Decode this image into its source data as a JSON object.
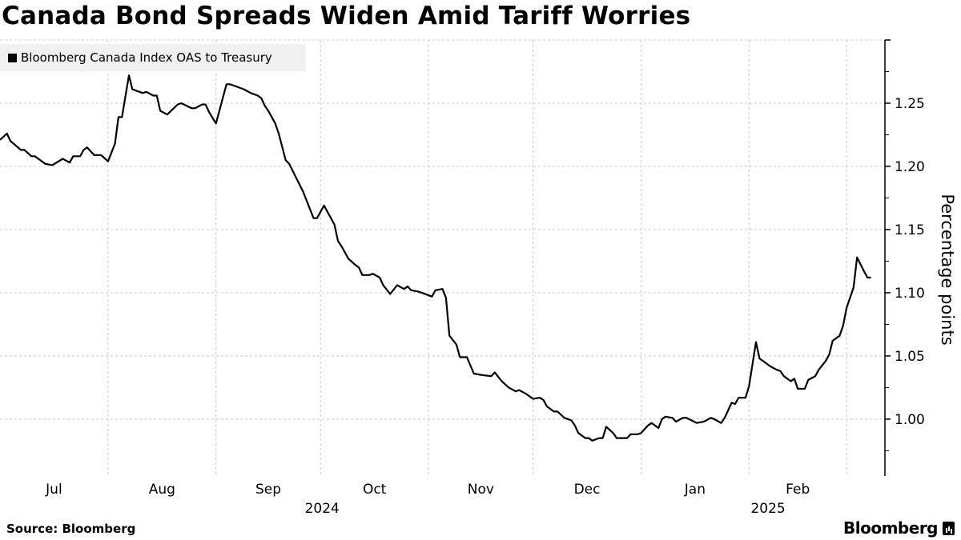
{
  "chart_data": {
    "type": "line",
    "title": "Canada Bond Spreads Widen Amid Tariff Worries",
    "legend": [
      "Bloomberg Canada Index OAS to Treasury"
    ],
    "legend_placement": "top-left",
    "ylabel": "Percentage points",
    "xlabel": "",
    "x_unit": "days since 2024-07-01",
    "xlim": [
      0,
      254
    ],
    "ylim": [
      0.955,
      1.3
    ],
    "yticks": [
      "1.00",
      "1.05",
      "1.10",
      "1.15",
      "1.20",
      "1.25"
    ],
    "grid": true,
    "month_ticks": [
      {
        "label": "Jul",
        "start": 0,
        "end": 31
      },
      {
        "label": "Aug",
        "start": 31,
        "end": 62
      },
      {
        "label": "Sep",
        "start": 62,
        "end": 92
      },
      {
        "label": "Oct",
        "start": 92,
        "end": 123
      },
      {
        "label": "Nov",
        "start": 123,
        "end": 153
      },
      {
        "label": "Dec",
        "start": 153,
        "end": 184
      },
      {
        "label": "Jan",
        "start": 184,
        "end": 215
      },
      {
        "label": "Feb",
        "start": 215,
        "end": 243
      }
    ],
    "month_boundaries": [
      31,
      62,
      92,
      123,
      153,
      184,
      215,
      243
    ],
    "year_labels": [
      {
        "label": "2024",
        "at": 92
      },
      {
        "label": "2025",
        "at": 220
      }
    ],
    "series": [
      {
        "name": "Bloomberg Canada Index OAS to Treasury",
        "color": "#000000",
        "x": [
          0,
          2,
          3,
          6,
          7,
          9,
          10,
          11,
          13,
          15,
          18,
          20,
          21,
          23,
          24,
          25,
          27,
          29,
          31,
          33,
          34,
          35,
          37,
          38,
          41,
          42,
          44,
          45,
          46,
          48,
          51,
          52,
          55,
          56,
          58,
          59,
          60,
          62,
          65,
          66,
          68,
          70,
          72,
          74,
          75,
          76,
          77,
          79,
          80,
          82,
          83,
          85,
          87,
          89,
          90,
          91,
          93,
          94,
          96,
          97,
          98,
          100,
          102,
          103,
          104,
          106,
          107,
          109,
          110,
          112,
          114,
          116,
          117,
          118,
          120,
          121,
          124,
          125,
          127,
          128,
          129,
          131,
          132,
          134,
          136,
          138,
          141,
          142,
          144,
          146,
          148,
          149,
          151,
          153,
          155,
          156,
          157,
          159,
          160,
          162,
          164,
          165,
          166,
          168,
          169,
          170,
          172,
          173,
          174,
          176,
          177,
          180,
          181,
          183,
          184,
          186,
          187,
          189,
          190,
          191,
          193,
          194,
          196,
          197,
          200,
          202,
          204,
          205,
          207,
          208,
          210,
          211,
          212,
          214,
          215,
          217,
          218,
          220,
          221,
          223,
          224,
          225,
          227,
          228,
          229,
          231,
          232,
          234,
          235,
          237,
          238,
          239,
          241,
          242,
          243,
          245,
          246,
          248,
          249,
          250
        ],
        "values": [
          1.221,
          1.226,
          1.22,
          1.213,
          1.213,
          1.208,
          1.208,
          1.206,
          1.202,
          1.201,
          1.206,
          1.203,
          1.208,
          1.208,
          1.213,
          1.215,
          1.209,
          1.209,
          1.204,
          1.218,
          1.239,
          1.239,
          1.272,
          1.261,
          1.258,
          1.259,
          1.256,
          1.256,
          1.244,
          1.241,
          1.249,
          1.25,
          1.246,
          1.246,
          1.249,
          1.249,
          1.243,
          1.234,
          1.265,
          1.265,
          1.263,
          1.261,
          1.258,
          1.256,
          1.254,
          1.248,
          1.244,
          1.234,
          1.226,
          1.205,
          1.202,
          1.191,
          1.18,
          1.166,
          1.159,
          1.159,
          1.169,
          1.164,
          1.154,
          1.141,
          1.137,
          1.127,
          1.122,
          1.12,
          1.114,
          1.114,
          1.115,
          1.112,
          1.106,
          1.099,
          1.106,
          1.103,
          1.105,
          1.102,
          1.101,
          1.1,
          1.097,
          1.102,
          1.103,
          1.096,
          1.066,
          1.059,
          1.049,
          1.049,
          1.036,
          1.035,
          1.034,
          1.037,
          1.03,
          1.025,
          1.022,
          1.023,
          1.02,
          1.016,
          1.017,
          1.015,
          1.01,
          1.006,
          1.006,
          1.001,
          0.999,
          0.995,
          0.989,
          0.985,
          0.985,
          0.983,
          0.985,
          0.985,
          0.994,
          0.989,
          0.985,
          0.985,
          0.988,
          0.988,
          0.989,
          0.995,
          0.997,
          0.993,
          1.0,
          1.002,
          1.001,
          0.998,
          1.001,
          1.001,
          0.997,
          0.998,
          1.001,
          1.0,
          0.997,
          1.001,
          1.013,
          1.012,
          1.017,
          1.017,
          1.026,
          1.061,
          1.048,
          1.044,
          1.042,
          1.039,
          1.038,
          1.034,
          1.03,
          1.032,
          1.024,
          1.024,
          1.031,
          1.034,
          1.039,
          1.046,
          1.051,
          1.062,
          1.066,
          1.074,
          1.088,
          1.104,
          1.128,
          1.117,
          1.112,
          1.112
        ]
      }
    ]
  },
  "footer": {
    "source": "Source: Bloomberg",
    "brand": "Bloomberg"
  }
}
